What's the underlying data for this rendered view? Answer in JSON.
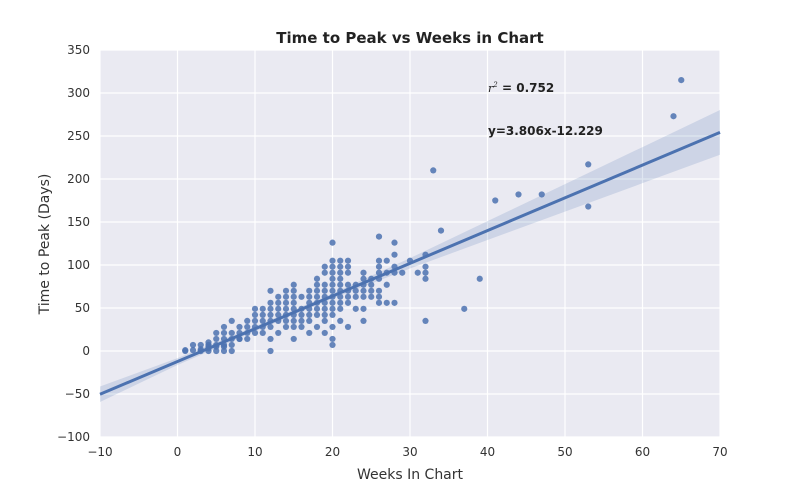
{
  "chart_data": {
    "type": "scatter",
    "title": "Time to Peak vs Weeks in Chart",
    "xlabel": "Weeks In Chart",
    "ylabel": "Time to Peak (Days)",
    "xlim": [
      -10,
      70
    ],
    "ylim": [
      -100,
      350
    ],
    "xticks": [
      -10,
      0,
      10,
      20,
      30,
      40,
      50,
      60,
      70
    ],
    "yticks": [
      -100,
      -50,
      0,
      50,
      100,
      150,
      200,
      250,
      300,
      350
    ],
    "xtick_labels": [
      "−10",
      "0",
      "10",
      "20",
      "30",
      "40",
      "50",
      "60",
      "70"
    ],
    "ytick_labels": [
      "−100",
      "−50",
      "0",
      "50",
      "100",
      "150",
      "200",
      "250",
      "300",
      "350"
    ],
    "grid": true,
    "annotation_r2_label": "r",
    "annotation_r2_value": "= 0.752",
    "annotation_equation": "y=3.806x-12.229",
    "regression": {
      "slope": 3.806,
      "intercept": -12.229,
      "ci_halfwidth": [
        9,
        4,
        3,
        3,
        6,
        11,
        16,
        21,
        26
      ]
    },
    "colors": {
      "points": "#4c72b0",
      "line": "#4c72b0",
      "band": "#4c72b0",
      "background": "#eaeaf2",
      "grid": "#ffffff"
    },
    "points": [
      [
        1,
        0
      ],
      [
        1,
        1
      ],
      [
        2,
        1
      ],
      [
        2,
        7
      ],
      [
        3,
        0
      ],
      [
        3,
        2
      ],
      [
        3,
        7
      ],
      [
        4,
        0
      ],
      [
        4,
        5
      ],
      [
        4,
        7
      ],
      [
        4,
        10
      ],
      [
        4,
        3
      ],
      [
        5,
        0
      ],
      [
        5,
        5
      ],
      [
        5,
        7
      ],
      [
        5,
        14
      ],
      [
        5,
        21
      ],
      [
        6,
        0
      ],
      [
        6,
        7
      ],
      [
        6,
        14
      ],
      [
        6,
        21
      ],
      [
        6,
        28
      ],
      [
        6,
        5
      ],
      [
        7,
        7
      ],
      [
        7,
        14
      ],
      [
        7,
        21
      ],
      [
        7,
        35
      ],
      [
        7,
        0
      ],
      [
        8,
        14
      ],
      [
        8,
        21
      ],
      [
        8,
        28
      ],
      [
        8,
        14
      ],
      [
        9,
        14
      ],
      [
        9,
        21
      ],
      [
        9,
        28
      ],
      [
        9,
        35
      ],
      [
        10,
        21
      ],
      [
        10,
        28
      ],
      [
        10,
        35
      ],
      [
        10,
        42
      ],
      [
        10,
        49
      ],
      [
        11,
        21
      ],
      [
        11,
        28
      ],
      [
        11,
        35
      ],
      [
        11,
        42
      ],
      [
        11,
        49
      ],
      [
        12,
        0
      ],
      [
        12,
        14
      ],
      [
        12,
        28
      ],
      [
        12,
        35
      ],
      [
        12,
        42
      ],
      [
        12,
        49
      ],
      [
        12,
        56
      ],
      [
        12,
        70
      ],
      [
        13,
        21
      ],
      [
        13,
        35
      ],
      [
        13,
        42
      ],
      [
        13,
        49
      ],
      [
        13,
        56
      ],
      [
        13,
        63
      ],
      [
        14,
        28
      ],
      [
        14,
        35
      ],
      [
        14,
        42
      ],
      [
        14,
        49
      ],
      [
        14,
        56
      ],
      [
        14,
        63
      ],
      [
        14,
        70
      ],
      [
        15,
        14
      ],
      [
        15,
        28
      ],
      [
        15,
        35
      ],
      [
        15,
        42
      ],
      [
        15,
        49
      ],
      [
        15,
        56
      ],
      [
        15,
        63
      ],
      [
        15,
        70
      ],
      [
        15,
        77
      ],
      [
        16,
        28
      ],
      [
        16,
        35
      ],
      [
        16,
        42
      ],
      [
        16,
        49
      ],
      [
        16,
        63
      ],
      [
        17,
        21
      ],
      [
        17,
        35
      ],
      [
        17,
        42
      ],
      [
        17,
        49
      ],
      [
        17,
        56
      ],
      [
        17,
        63
      ],
      [
        17,
        70
      ],
      [
        18,
        28
      ],
      [
        18,
        42
      ],
      [
        18,
        49
      ],
      [
        18,
        56
      ],
      [
        18,
        63
      ],
      [
        18,
        70
      ],
      [
        18,
        77
      ],
      [
        18,
        84
      ],
      [
        19,
        21
      ],
      [
        19,
        35
      ],
      [
        19,
        42
      ],
      [
        19,
        49
      ],
      [
        19,
        56
      ],
      [
        19,
        63
      ],
      [
        19,
        70
      ],
      [
        19,
        77
      ],
      [
        19,
        91
      ],
      [
        19,
        98
      ],
      [
        20,
        7
      ],
      [
        20,
        14
      ],
      [
        20,
        28
      ],
      [
        20,
        42
      ],
      [
        20,
        49
      ],
      [
        20,
        56
      ],
      [
        20,
        63
      ],
      [
        20,
        70
      ],
      [
        20,
        77
      ],
      [
        20,
        84
      ],
      [
        20,
        91
      ],
      [
        20,
        98
      ],
      [
        20,
        105
      ],
      [
        20,
        126
      ],
      [
        21,
        35
      ],
      [
        21,
        49
      ],
      [
        21,
        56
      ],
      [
        21,
        63
      ],
      [
        21,
        70
      ],
      [
        21,
        77
      ],
      [
        21,
        84
      ],
      [
        21,
        91
      ],
      [
        21,
        98
      ],
      [
        21,
        105
      ],
      [
        22,
        28
      ],
      [
        22,
        56
      ],
      [
        22,
        63
      ],
      [
        22,
        70
      ],
      [
        22,
        77
      ],
      [
        22,
        91
      ],
      [
        22,
        98
      ],
      [
        22,
        105
      ],
      [
        23,
        49
      ],
      [
        23,
        63
      ],
      [
        23,
        70
      ],
      [
        23,
        77
      ],
      [
        24,
        35
      ],
      [
        24,
        49
      ],
      [
        24,
        63
      ],
      [
        24,
        70
      ],
      [
        24,
        77
      ],
      [
        24,
        84
      ],
      [
        24,
        91
      ],
      [
        25,
        63
      ],
      [
        25,
        70
      ],
      [
        25,
        77
      ],
      [
        25,
        84
      ],
      [
        26,
        56
      ],
      [
        26,
        63
      ],
      [
        26,
        70
      ],
      [
        26,
        84
      ],
      [
        26,
        91
      ],
      [
        26,
        98
      ],
      [
        26,
        105
      ],
      [
        26,
        133
      ],
      [
        27,
        56
      ],
      [
        27,
        77
      ],
      [
        27,
        91
      ],
      [
        27,
        105
      ],
      [
        28,
        56
      ],
      [
        28,
        91
      ],
      [
        28,
        98
      ],
      [
        28,
        112
      ],
      [
        28,
        126
      ],
      [
        29,
        91
      ],
      [
        30,
        105
      ],
      [
        31,
        91
      ],
      [
        32,
        35
      ],
      [
        32,
        84
      ],
      [
        32,
        91
      ],
      [
        32,
        98
      ],
      [
        32,
        112
      ],
      [
        33,
        210
      ],
      [
        34,
        140
      ],
      [
        37,
        49
      ],
      [
        39,
        84
      ],
      [
        41,
        175
      ],
      [
        44,
        182
      ],
      [
        47,
        182
      ],
      [
        53,
        217
      ],
      [
        53,
        168
      ],
      [
        64,
        273
      ],
      [
        65,
        315
      ]
    ]
  }
}
